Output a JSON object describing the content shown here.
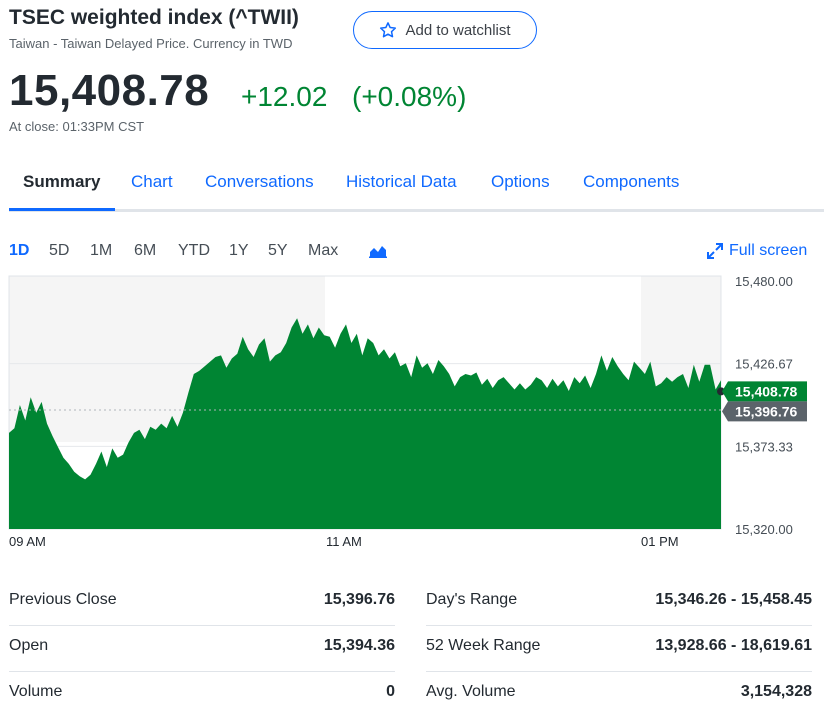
{
  "header": {
    "title": "TSEC weighted index (^TWII)",
    "subtitle": "Taiwan - Taiwan Delayed Price. Currency in TWD",
    "watchlist_label": "Add to watchlist",
    "star_icon": "star-outline-icon"
  },
  "quote": {
    "price": "15,408.78",
    "change": "+12.02",
    "change_percent": "(+0.08%)",
    "close_time": "At close: 01:33PM CST",
    "positive_color": "#008533"
  },
  "tabs": [
    {
      "label": "Summary",
      "active": true
    },
    {
      "label": "Chart"
    },
    {
      "label": "Conversations"
    },
    {
      "label": "Historical Data"
    },
    {
      "label": "Options"
    },
    {
      "label": "Components"
    }
  ],
  "ranges": [
    {
      "label": "1D",
      "active": true
    },
    {
      "label": "5D"
    },
    {
      "label": "1M"
    },
    {
      "label": "6M"
    },
    {
      "label": "YTD"
    },
    {
      "label": "1Y"
    },
    {
      "label": "5Y"
    },
    {
      "label": "Max"
    }
  ],
  "chart_type_icon": "area-chart-icon",
  "fullscreen": {
    "label": "Full screen",
    "icon": "expand-arrows-icon"
  },
  "chart_data": {
    "type": "area",
    "y_ticks": [
      "15,480.00",
      "15,426.67",
      "15,373.33",
      "15,320.00"
    ],
    "ylim": [
      15320,
      15480
    ],
    "x_ticks": [
      "09 AM",
      "11 AM",
      "01 PM"
    ],
    "current_price_label": "15,408.78",
    "previous_close_label": "15,396.76",
    "previous_close": 15396.76,
    "current_price": 15408.78,
    "series_color": "#008533",
    "values": [
      15382,
      15385,
      15400,
      15390,
      15405,
      15395,
      15402,
      15388,
      15380,
      15373,
      15366,
      15362,
      15357,
      15354,
      15352,
      15355,
      15362,
      15370,
      15360,
      15372,
      15366,
      15368,
      15376,
      15382,
      15384,
      15378,
      15386,
      15384,
      15388,
      15385,
      15393,
      15386,
      15395,
      15408,
      15420,
      15422,
      15425,
      15428,
      15431,
      15432,
      15424,
      15430,
      15433,
      15444,
      15436,
      15431,
      15439,
      15443,
      15428,
      15432,
      15434,
      15440,
      15450,
      15456,
      15446,
      15452,
      15443,
      15450,
      15445,
      15444,
      15437,
      15446,
      15452,
      15440,
      15446,
      15432,
      15443,
      15440,
      15432,
      15436,
      15430,
      15434,
      15425,
      15427,
      15418,
      15432,
      15424,
      15427,
      15420,
      15429,
      15425,
      15420,
      15412,
      15418,
      15420,
      15419,
      15421,
      15413,
      15417,
      15411,
      15416,
      15418,
      15414,
      15410,
      15414,
      15410,
      15413,
      15418,
      15416,
      15411,
      15417,
      15412,
      15416,
      15409,
      15418,
      15414,
      15419,
      15411,
      15420,
      15432,
      15422,
      15431,
      15425,
      15420,
      15416,
      15428,
      15424,
      15420,
      15428,
      15412,
      15414,
      15418,
      15415,
      15418,
      15420,
      15411,
      15426,
      15415,
      15426,
      15426,
      15410,
      15416
    ]
  },
  "stats": {
    "left": [
      {
        "label": "Previous Close",
        "value": "15,396.76"
      },
      {
        "label": "Open",
        "value": "15,394.36"
      },
      {
        "label": "Volume",
        "value": "0"
      }
    ],
    "right": [
      {
        "label": "Day's Range",
        "value": "15,346.26 - 15,458.45"
      },
      {
        "label": "52 Week Range",
        "value": "13,928.66 - 18,619.61"
      },
      {
        "label": "Avg. Volume",
        "value": "3,154,328"
      }
    ]
  }
}
